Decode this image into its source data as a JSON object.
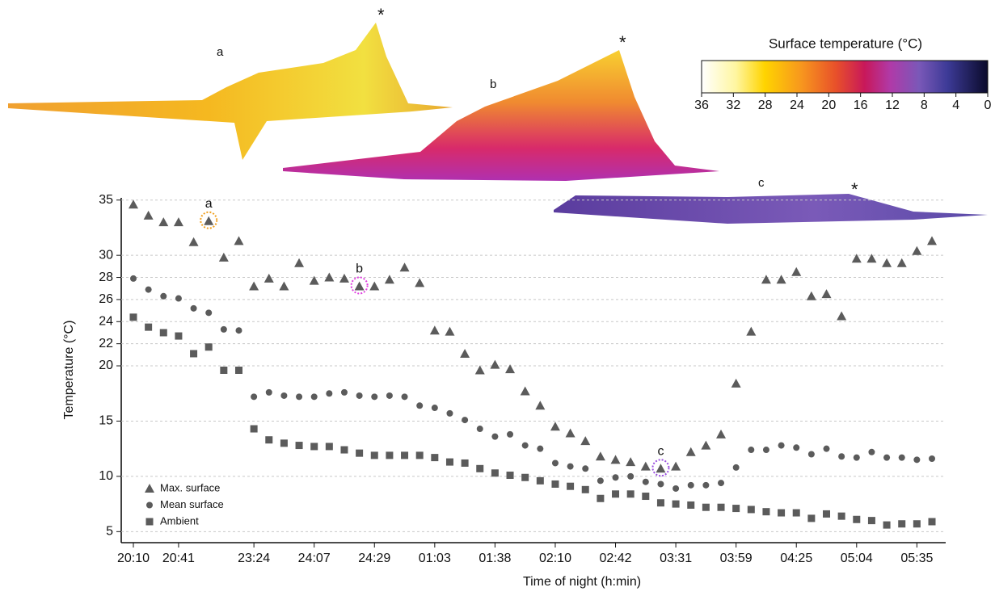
{
  "chart_data": {
    "type": "scatter",
    "x_label": "Time of night (h:min)",
    "y_label": "Temperature (°C)",
    "categories": [
      "20:10",
      null,
      null,
      "20:41",
      null,
      null,
      null,
      null,
      "23:24",
      null,
      null,
      null,
      "24:07",
      null,
      null,
      null,
      "24:29",
      null,
      null,
      null,
      "01:03",
      null,
      null,
      null,
      "01:38",
      null,
      null,
      null,
      "02:10",
      null,
      null,
      null,
      "02:42",
      null,
      null,
      null,
      "03:31",
      null,
      null,
      null,
      "03:59",
      null,
      null,
      null,
      "04:25",
      null,
      null,
      null,
      "05:04",
      null,
      null,
      null,
      "05:35",
      null
    ],
    "ylim": [
      4,
      35.2
    ],
    "yticks": [
      5,
      10,
      15,
      20,
      22,
      24,
      26,
      28,
      30,
      35
    ],
    "grid": true,
    "legend": "lower left",
    "series": [
      {
        "name": "Max. surface",
        "marker": "triangle",
        "color": "#5b5b5b",
        "values": [
          34.6,
          33.6,
          33.0,
          33.0,
          31.2,
          33.1,
          29.8,
          31.3,
          27.2,
          27.9,
          27.2,
          29.3,
          27.7,
          28.0,
          27.9,
          27.2,
          27.2,
          27.8,
          28.9,
          27.5,
          23.2,
          23.1,
          21.1,
          19.6,
          20.1,
          19.7,
          17.7,
          16.4,
          14.5,
          13.9,
          13.2,
          11.8,
          11.5,
          11.3,
          10.9,
          10.7,
          10.9,
          12.2,
          12.8,
          13.8,
          18.4,
          23.1,
          27.8,
          27.8,
          28.5,
          26.3,
          26.5,
          24.5,
          29.7,
          29.7,
          29.3,
          29.3,
          30.4,
          31.3
        ]
      },
      {
        "name": "Mean surface",
        "marker": "circle",
        "color": "#5b5b5b",
        "values": [
          27.9,
          26.9,
          26.3,
          26.1,
          25.2,
          24.8,
          23.3,
          23.2,
          17.2,
          17.6,
          17.3,
          17.2,
          17.2,
          17.5,
          17.6,
          17.3,
          17.2,
          17.3,
          17.2,
          16.4,
          16.2,
          15.7,
          15.1,
          14.3,
          13.6,
          13.8,
          12.8,
          12.5,
          11.2,
          10.9,
          10.7,
          9.6,
          9.9,
          10.0,
          9.5,
          9.3,
          8.9,
          9.2,
          9.2,
          9.4,
          10.8,
          12.4,
          12.4,
          12.8,
          12.6,
          12.0,
          12.5,
          11.8,
          11.7,
          12.2,
          11.7,
          11.7,
          11.5,
          11.6
        ]
      },
      {
        "name": "Ambient",
        "marker": "square",
        "color": "#5b5b5b",
        "values": [
          24.4,
          23.5,
          23.0,
          22.7,
          21.1,
          21.7,
          19.6,
          19.6,
          14.3,
          13.3,
          13.0,
          12.8,
          12.7,
          12.7,
          12.4,
          12.1,
          11.9,
          11.9,
          11.9,
          11.9,
          11.7,
          11.3,
          11.2,
          10.7,
          10.3,
          10.1,
          9.9,
          9.6,
          9.3,
          9.1,
          8.8,
          8.0,
          8.4,
          8.4,
          8.2,
          7.6,
          7.5,
          7.4,
          7.2,
          7.2,
          7.1,
          7.0,
          6.8,
          6.7,
          6.7,
          6.2,
          6.6,
          6.4,
          6.1,
          6.0,
          5.6,
          5.7,
          5.7,
          5.9
        ]
      }
    ],
    "annotations": [
      {
        "text": "a",
        "point": 5,
        "color": "#f0a020"
      },
      {
        "text": "b",
        "point": 15,
        "color": "#e040e0"
      },
      {
        "text": "c",
        "point": 35,
        "color": "#9b50e0"
      }
    ]
  },
  "insets": [
    {
      "label": "a",
      "label_color": "#111",
      "peak": "*"
    },
    {
      "label": "b",
      "label_color": "#e040e0",
      "peak": "*"
    },
    {
      "label": "c",
      "label_color": "#9b50e0",
      "peak": "*"
    }
  ],
  "colorbar": {
    "title": "Surface temperature (°C)",
    "lim": [
      36,
      0
    ],
    "ticks": [
      36,
      32,
      28,
      24,
      20,
      16,
      12,
      8,
      4,
      0
    ]
  }
}
